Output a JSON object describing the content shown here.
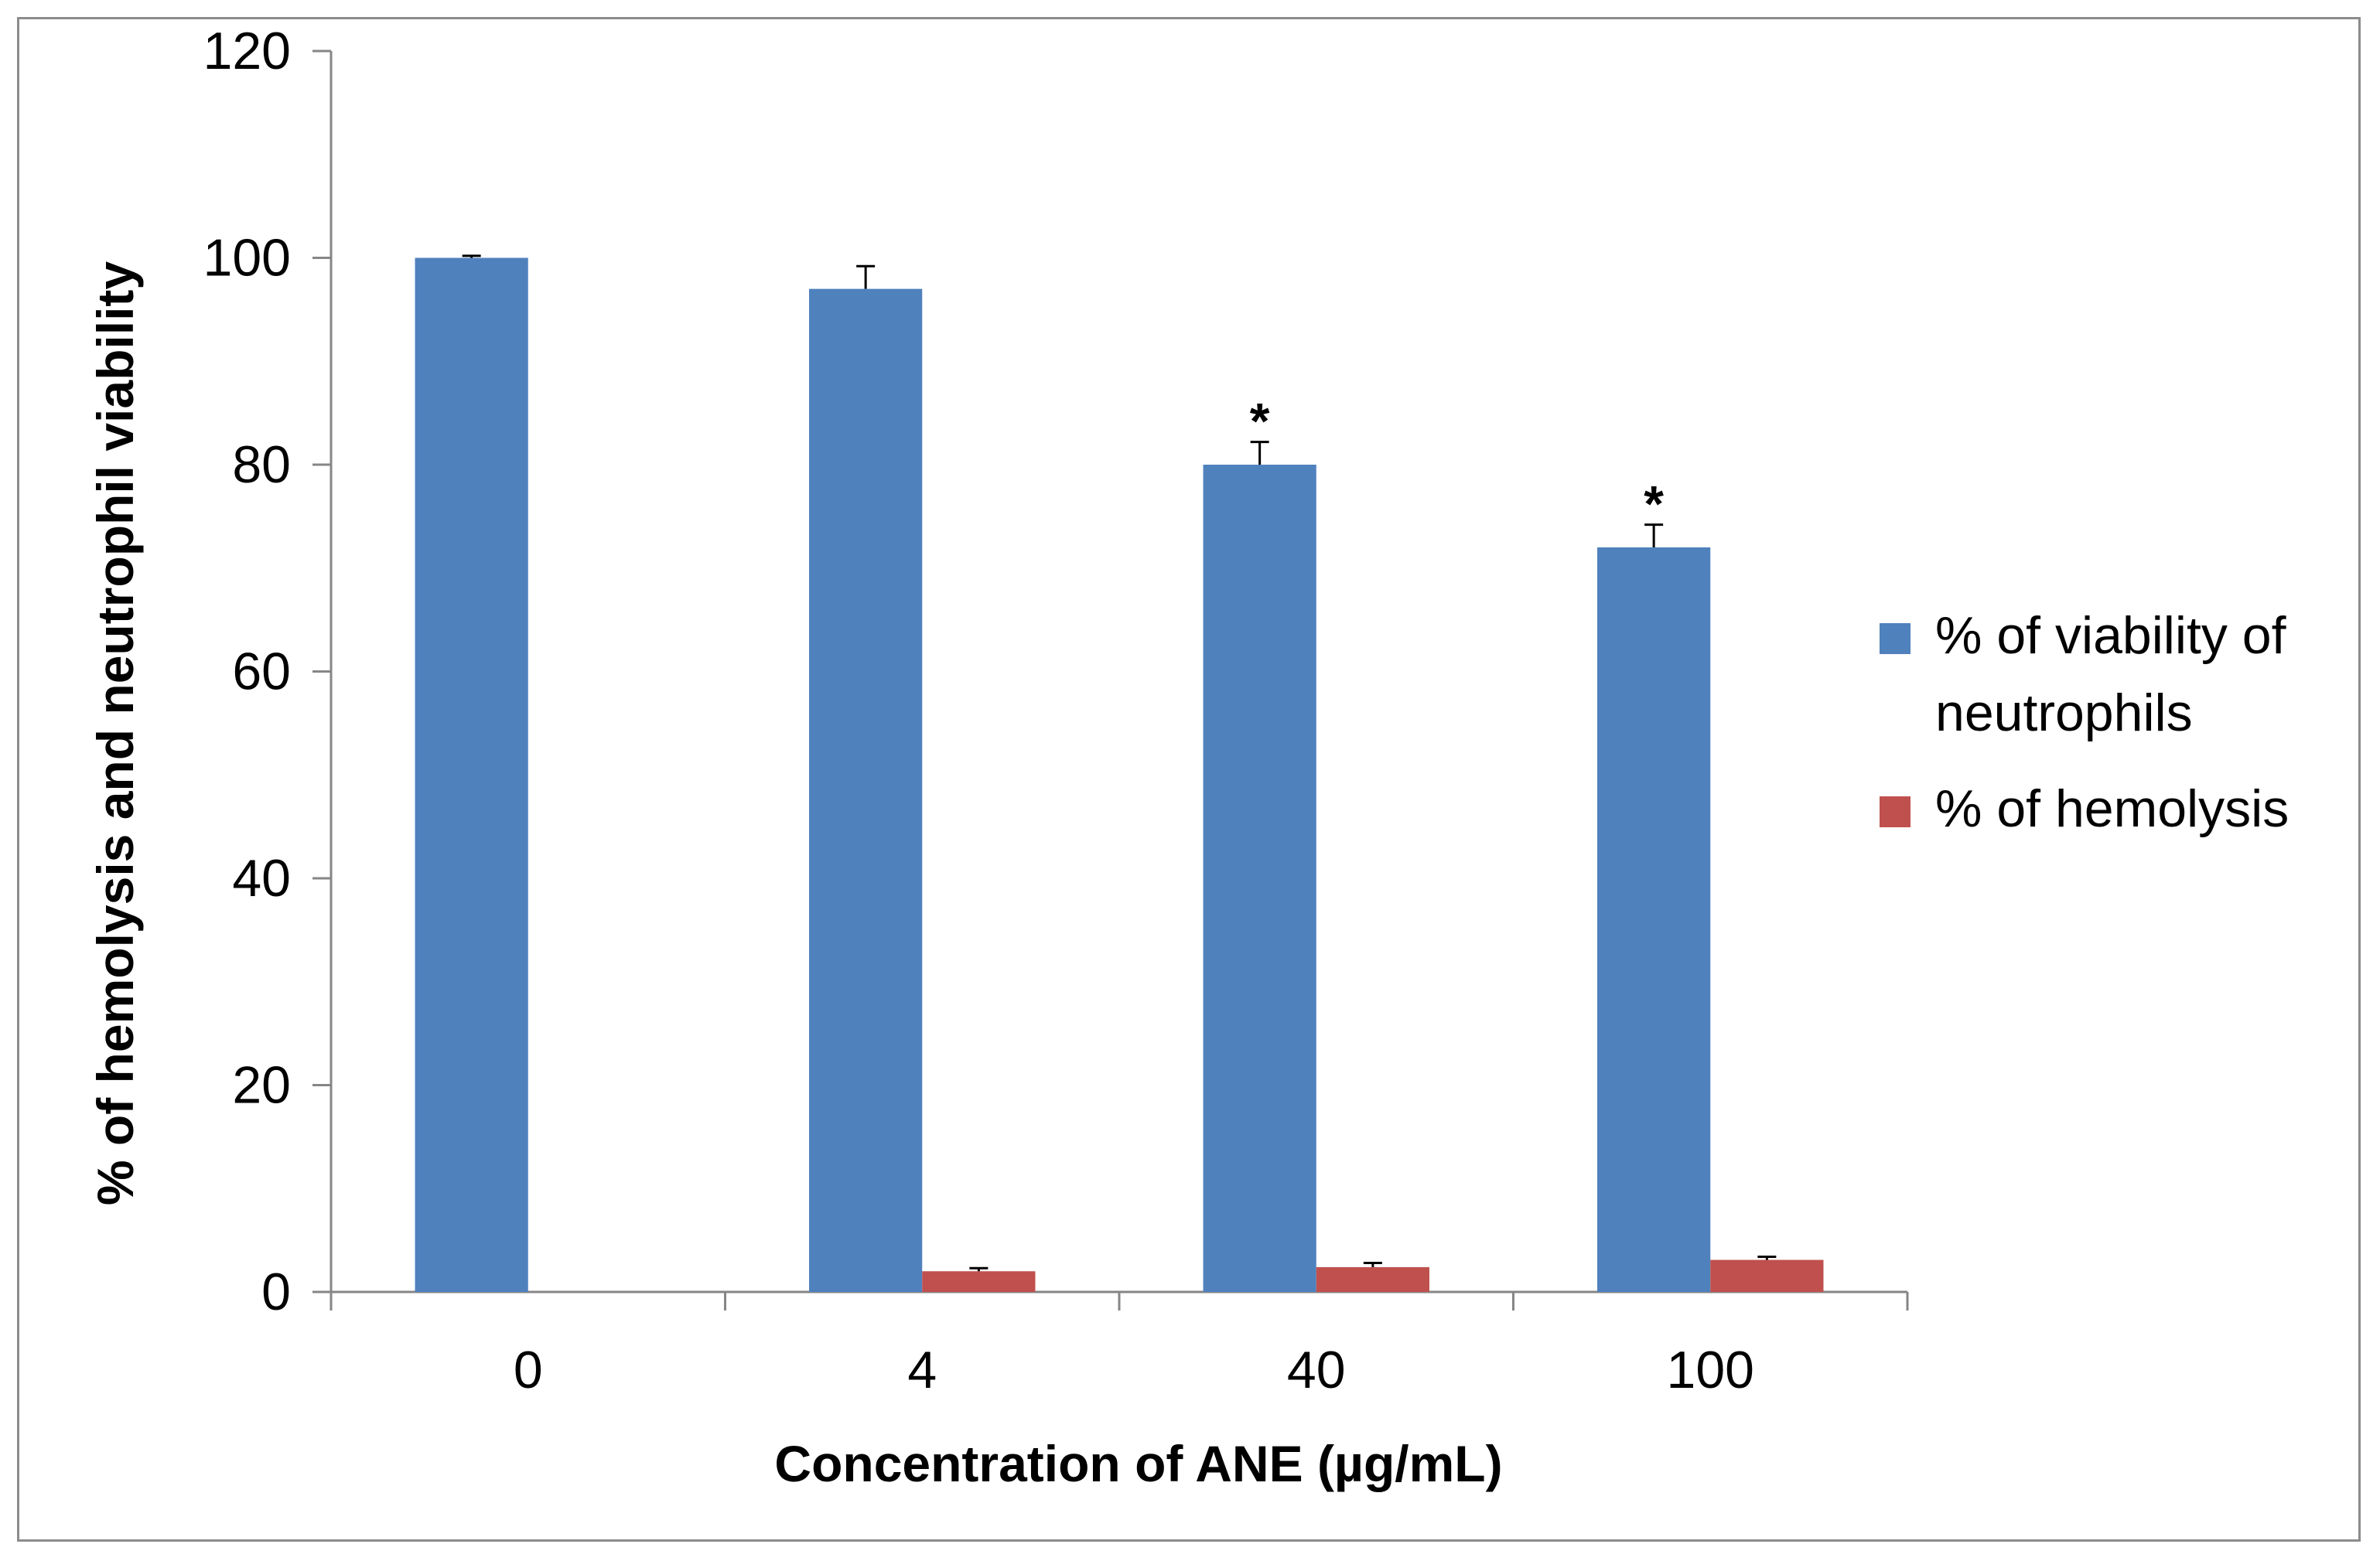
{
  "chart_data": {
    "type": "bar",
    "title": "",
    "xlabel": "Concentration of ANE (µg/mL)",
    "ylabel": "% of hemolysis and neutrophil viability",
    "categories": [
      "0",
      "4",
      "40",
      "100"
    ],
    "ylim": [
      0,
      120
    ],
    "yticks": [
      0,
      20,
      40,
      60,
      80,
      100,
      120
    ],
    "grid": false,
    "legend_position": "right",
    "series": [
      {
        "name": "% of viability of neutrophils",
        "legend_lines": [
          "% of viability of",
          "neutrophils"
        ],
        "color": "#4f81bd",
        "values": [
          100,
          97,
          80,
          72
        ],
        "errors": [
          0.2,
          2.2,
          2.2,
          2.2
        ]
      },
      {
        "name": "% of hemolysis",
        "legend_lines": [
          "% of hemolysis"
        ],
        "color": "#c0504d",
        "values": [
          0,
          2,
          2.4,
          3.1
        ],
        "errors": [
          0,
          0.3,
          0.4,
          0.3
        ]
      }
    ],
    "annotations": [
      {
        "category": "40",
        "series": 0,
        "text": "*"
      },
      {
        "category": "100",
        "series": 0,
        "text": "*"
      }
    ]
  }
}
